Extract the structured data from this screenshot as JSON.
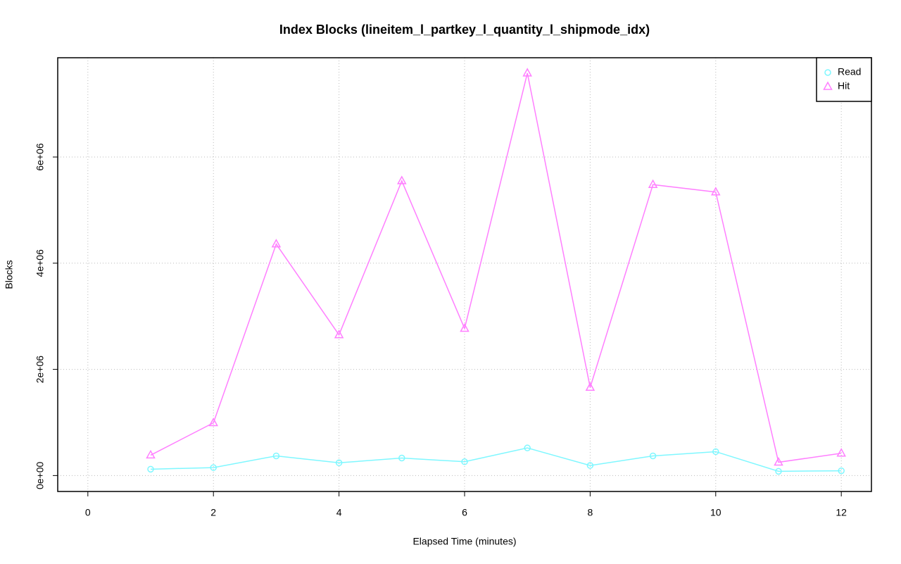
{
  "chart_data": {
    "type": "line",
    "title": "Index Blocks (lineitem_l_partkey_l_quantity_l_shipmode_idx)",
    "x_label": "Elapsed Time (minutes)",
    "y_label": "Blocks",
    "x": [
      1,
      2,
      3,
      4,
      5,
      6,
      7,
      8,
      9,
      10,
      11,
      12
    ],
    "series": [
      {
        "name": "Read",
        "color": "#7ff7ff",
        "marker": "circle",
        "values": [
          120000,
          150000,
          370000,
          240000,
          330000,
          260000,
          520000,
          190000,
          370000,
          450000,
          80000,
          90000
        ]
      },
      {
        "name": "Hit",
        "color": "#ff7fff",
        "marker": "triangle",
        "values": [
          384000,
          993000,
          4360000,
          2650000,
          5550000,
          2770000,
          7580000,
          1660000,
          5480000,
          5340000,
          250000,
          420000
        ]
      }
    ],
    "xlim": [
      -0.48,
      12.48
    ],
    "xticks": [
      0,
      2,
      4,
      6,
      8,
      10,
      12
    ],
    "ylim": [
      -300000,
      7870000
    ],
    "yticks": [
      {
        "value": 0,
        "label": "0e+00"
      },
      {
        "value": 2000000,
        "label": "2e+06"
      },
      {
        "value": 4000000,
        "label": "4e+06"
      },
      {
        "value": 6000000,
        "label": "6e+06"
      }
    ],
    "grid": true,
    "legend": "top-right"
  }
}
